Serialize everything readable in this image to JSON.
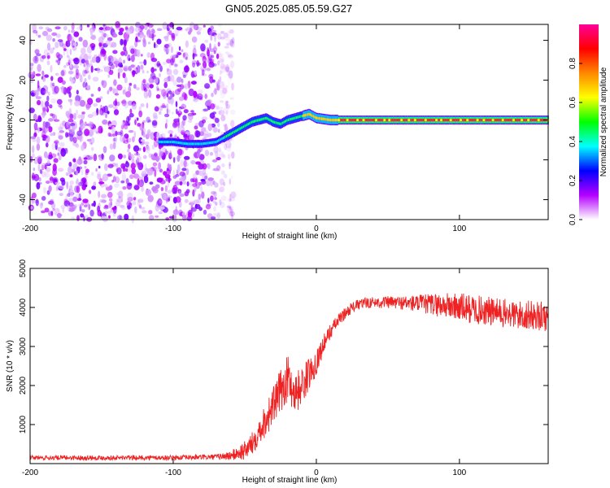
{
  "title": "GN05.2025.085.05.59.G27",
  "chart_data": [
    {
      "type": "heatmap",
      "name": "spectrogram",
      "xlabel": "Height of straight line (km)",
      "ylabel": "Frequency (Hz)",
      "xlim": [
        -200,
        162
      ],
      "ylim": [
        -50,
        48
      ],
      "xticks": [
        "-200",
        "-100",
        "0",
        "100"
      ],
      "yticks": [
        "-40",
        "-20",
        "0",
        "20",
        "40"
      ],
      "ridge_x": [
        -110,
        -100,
        -90,
        -80,
        -70,
        -60,
        -50,
        -45,
        -40,
        -35,
        -30,
        -25,
        -20,
        -15,
        -10,
        -5,
        0,
        10,
        50,
        100,
        162
      ],
      "ridge_freq": [
        -11,
        -11,
        -12,
        -12,
        -11,
        -7,
        -3,
        -1,
        0,
        1,
        -1,
        -2,
        0,
        1,
        2,
        3,
        1,
        0,
        0,
        0,
        0
      ],
      "noise_x_range": [
        -200,
        -68
      ],
      "colorbar": {
        "label": "Normalized spectral amplitude",
        "ticks": [
          "0.0",
          "0.2",
          "0.4",
          "0.6",
          "0.8"
        ],
        "colors": [
          "#ffffff",
          "#b400ff",
          "#0000ff",
          "#00ffff",
          "#00ff00",
          "#ffff00",
          "#ff8800",
          "#ff0000",
          "#ff0099"
        ]
      }
    },
    {
      "type": "line",
      "name": "snr",
      "xlabel": "Height of straight line (km)",
      "ylabel": "SNR (10 * v/v)",
      "xlim": [
        -200,
        162
      ],
      "ylim": [
        0,
        5000
      ],
      "xticks": [
        "-200",
        "-100",
        "0",
        "100"
      ],
      "yticks": [
        "1000",
        "2000",
        "3000",
        "4000",
        "5000"
      ],
      "color": "#ee2222",
      "x": [
        -200,
        -150,
        -100,
        -70,
        -60,
        -50,
        -45,
        -40,
        -35,
        -30,
        -25,
        -20,
        -15,
        -10,
        -5,
        0,
        5,
        10,
        15,
        20,
        25,
        30,
        35,
        40,
        50,
        60,
        70,
        80,
        90,
        100,
        110,
        120,
        130,
        140,
        150,
        162
      ],
      "values": [
        150,
        150,
        150,
        170,
        200,
        330,
        500,
        850,
        1150,
        1500,
        1850,
        2200,
        1800,
        2000,
        2300,
        2600,
        3050,
        3400,
        3650,
        3850,
        4000,
        4080,
        4120,
        4130,
        4130,
        4120,
        4100,
        4080,
        4050,
        4000,
        3950,
        3900,
        3850,
        3800,
        3800,
        3750
      ],
      "noise": [
        60,
        60,
        60,
        70,
        120,
        250,
        300,
        350,
        450,
        500,
        550,
        600,
        550,
        500,
        420,
        320,
        250,
        200,
        170,
        150,
        140,
        140,
        140,
        140,
        160,
        180,
        220,
        280,
        330,
        380,
        380,
        380,
        380,
        380,
        380,
        380
      ]
    }
  ]
}
